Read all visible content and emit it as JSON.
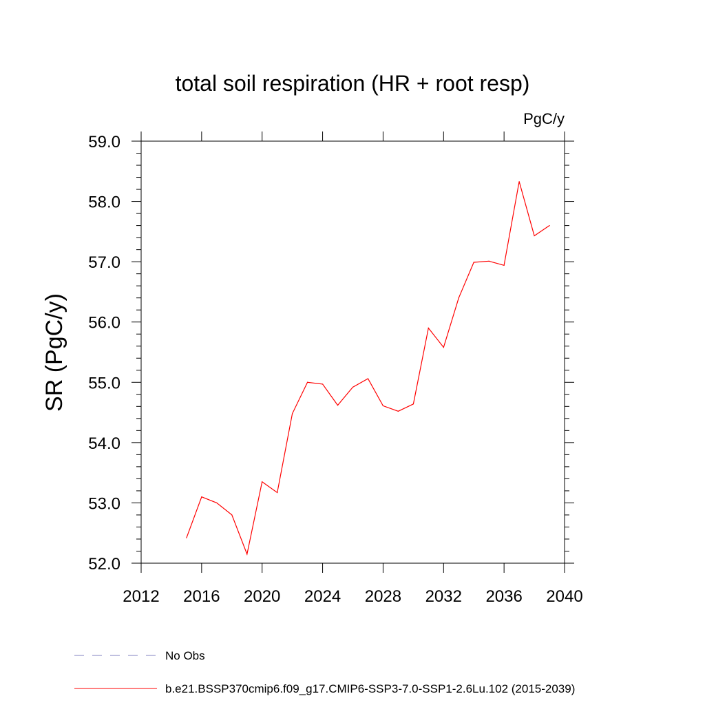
{
  "chart_data": {
    "type": "line",
    "title": "total soil respiration (HR + root resp)",
    "units_label": "PgC/y",
    "ylabel": "SR  (PgC/y)",
    "xlabel": "",
    "xlim": [
      2012,
      2040
    ],
    "ylim": [
      52.0,
      59.0
    ],
    "x_ticks": [
      "2012",
      "2016",
      "2020",
      "2024",
      "2028",
      "2032",
      "2036",
      "2040"
    ],
    "y_ticks": [
      "52.0",
      "53.0",
      "54.0",
      "55.0",
      "56.0",
      "57.0",
      "58.0",
      "59.0"
    ],
    "grid": false,
    "series": [
      {
        "name": "b.e21.BSSP370cmip6.f09_g17.CMIP6-SSP3-7.0-SSP1-2.6Lu.102 (2015-2039)",
        "color": "#ff0000",
        "x": [
          2015,
          2016,
          2017,
          2018,
          2019,
          2020,
          2021,
          2022,
          2023,
          2024,
          2025,
          2026,
          2027,
          2028,
          2029,
          2030,
          2031,
          2032,
          2033,
          2034,
          2035,
          2036,
          2037,
          2038,
          2039
        ],
        "y": [
          52.42,
          53.1,
          53.0,
          52.8,
          52.15,
          53.35,
          53.17,
          54.48,
          55.0,
          54.97,
          54.62,
          54.92,
          55.06,
          54.61,
          54.52,
          54.64,
          55.9,
          55.58,
          56.4,
          56.99,
          57.01,
          56.94,
          58.33,
          57.43,
          57.6
        ]
      }
    ],
    "legend": {
      "placement": "bottom-left",
      "entries": [
        {
          "label": "No Obs",
          "style": "dashed",
          "color": "#8080c0"
        },
        {
          "label": "b.e21.BSSP370cmip6.f09_g17.CMIP6-SSP3-7.0-SSP1-2.6Lu.102 (2015-2039)",
          "style": "solid",
          "color": "#ff0000"
        }
      ]
    }
  }
}
